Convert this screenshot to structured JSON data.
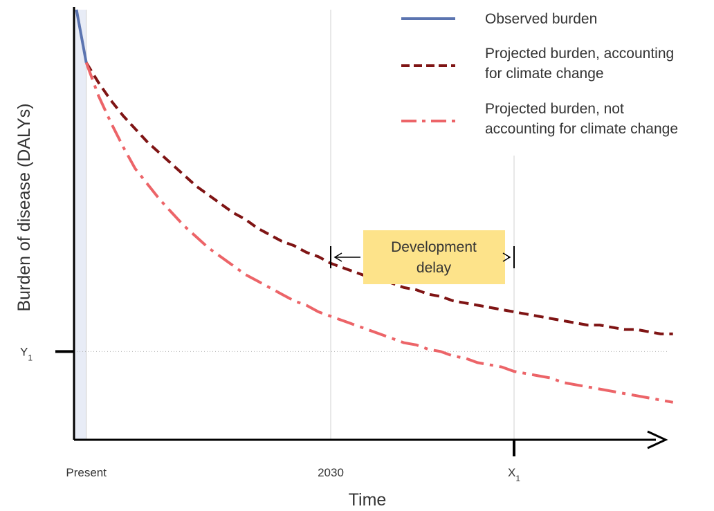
{
  "chart_data": {
    "type": "line",
    "xlabel": "Time",
    "ylabel": "Burden of disease (DALYs)",
    "x_ticks": [
      {
        "label": "Present",
        "key": "present"
      },
      {
        "label": "2030",
        "key": "y2030"
      },
      {
        "label": "X",
        "sub": "1",
        "key": "x1"
      }
    ],
    "y_ticks": [
      {
        "label": "Y",
        "sub": "1",
        "key": "y1"
      }
    ],
    "series": [
      {
        "key": "observed",
        "name": "Observed burden",
        "color": "#5b74b0",
        "style": "solid",
        "x": [
          -0.4,
          0.0
        ],
        "y": [
          1.55,
          1.31
        ]
      },
      {
        "key": "climate",
        "name": "Projected burden, accounting for climate change",
        "color": "#7f1414",
        "style": "dashed",
        "x": [
          0.0,
          0.5,
          1.0,
          1.5,
          2.0,
          2.5,
          3.0,
          3.5,
          4.0,
          4.5,
          5.0,
          5.5,
          6.0,
          6.5,
          7.0,
          7.5,
          8.0,
          8.5,
          9.0,
          9.5,
          10.0,
          10.5,
          11.0,
          11.5,
          12.0,
          12.5,
          13.0,
          13.5,
          14.0,
          14.5,
          15.0,
          15.5,
          16.0,
          16.5,
          17.0,
          17.5,
          18.0,
          18.5,
          19.0,
          19.5,
          20.0,
          20.5,
          21.0,
          21.5,
          22.0,
          22.5,
          23.0,
          23.5,
          24.0
        ],
        "y": [
          1.31,
          1.22,
          1.14,
          1.07,
          1.01,
          0.95,
          0.9,
          0.85,
          0.8,
          0.75,
          0.71,
          0.67,
          0.63,
          0.6,
          0.56,
          0.53,
          0.5,
          0.48,
          0.45,
          0.43,
          0.4,
          0.38,
          0.36,
          0.34,
          0.33,
          0.31,
          0.29,
          0.28,
          0.26,
          0.25,
          0.23,
          0.22,
          0.21,
          0.2,
          0.19,
          0.18,
          0.17,
          0.16,
          0.15,
          0.14,
          0.13,
          0.12,
          0.12,
          0.11,
          0.1,
          0.1,
          0.09,
          0.08,
          0.08
        ]
      },
      {
        "key": "noclimate",
        "name": "Projected burden, not accounting for climate change",
        "color": "#ec6468",
        "style": "dashdot",
        "x": [
          0.0,
          0.5,
          1.0,
          1.5,
          2.0,
          2.5,
          3.0,
          3.5,
          4.0,
          4.5,
          5.0,
          5.5,
          6.0,
          6.5,
          7.0,
          7.5,
          8.0,
          8.5,
          9.0,
          9.5,
          10.0,
          10.5,
          11.0,
          11.5,
          12.0,
          12.5,
          13.0,
          13.5,
          14.0,
          14.5,
          15.0,
          15.5,
          16.0,
          16.5,
          17.0,
          17.5,
          18.0,
          18.5,
          19.0,
          19.5,
          20.0,
          20.5,
          21.0,
          21.5,
          22.0,
          22.5,
          23.0,
          23.5,
          24.0
        ],
        "y": [
          1.31,
          1.16,
          1.04,
          0.93,
          0.83,
          0.76,
          0.69,
          0.63,
          0.57,
          0.52,
          0.47,
          0.43,
          0.39,
          0.35,
          0.32,
          0.29,
          0.26,
          0.23,
          0.21,
          0.18,
          0.16,
          0.14,
          0.12,
          0.1,
          0.08,
          0.06,
          0.04,
          0.03,
          0.01,
          0.0,
          -0.02,
          -0.03,
          -0.05,
          -0.06,
          -0.07,
          -0.09,
          -0.1,
          -0.11,
          -0.12,
          -0.14,
          -0.15,
          -0.16,
          -0.17,
          -0.18,
          -0.19,
          -0.2,
          -0.21,
          -0.22,
          -0.23
        ]
      }
    ],
    "x_marks": {
      "y2030": 10.0,
      "x1": 17.5
    },
    "y_marks": {
      "y1": 0.0
    },
    "xlim": [
      -0.5,
      23.5
    ],
    "ylim": [
      -0.4,
      1.55
    ],
    "annotation": {
      "line1": "Development",
      "line2": "delay",
      "from": "y2030",
      "to": "x1",
      "color": "#fde38a"
    },
    "grid": false,
    "legend_position": "top-right"
  }
}
